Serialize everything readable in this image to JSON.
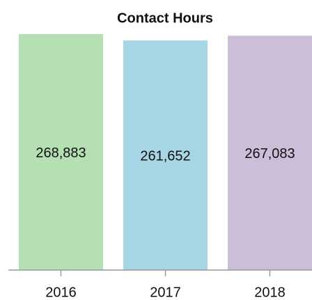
{
  "chart_data": {
    "type": "bar",
    "title": "Contact Hours",
    "categories": [
      "2016",
      "2017",
      "2018"
    ],
    "values": [
      268883,
      261652,
      267083
    ],
    "value_labels": [
      "268,883",
      "261,652",
      "267,083"
    ],
    "colors": [
      "#b5e0b4",
      "#a6d6e3",
      "#ccbdd9"
    ],
    "ylim": [
      0,
      270000
    ]
  }
}
